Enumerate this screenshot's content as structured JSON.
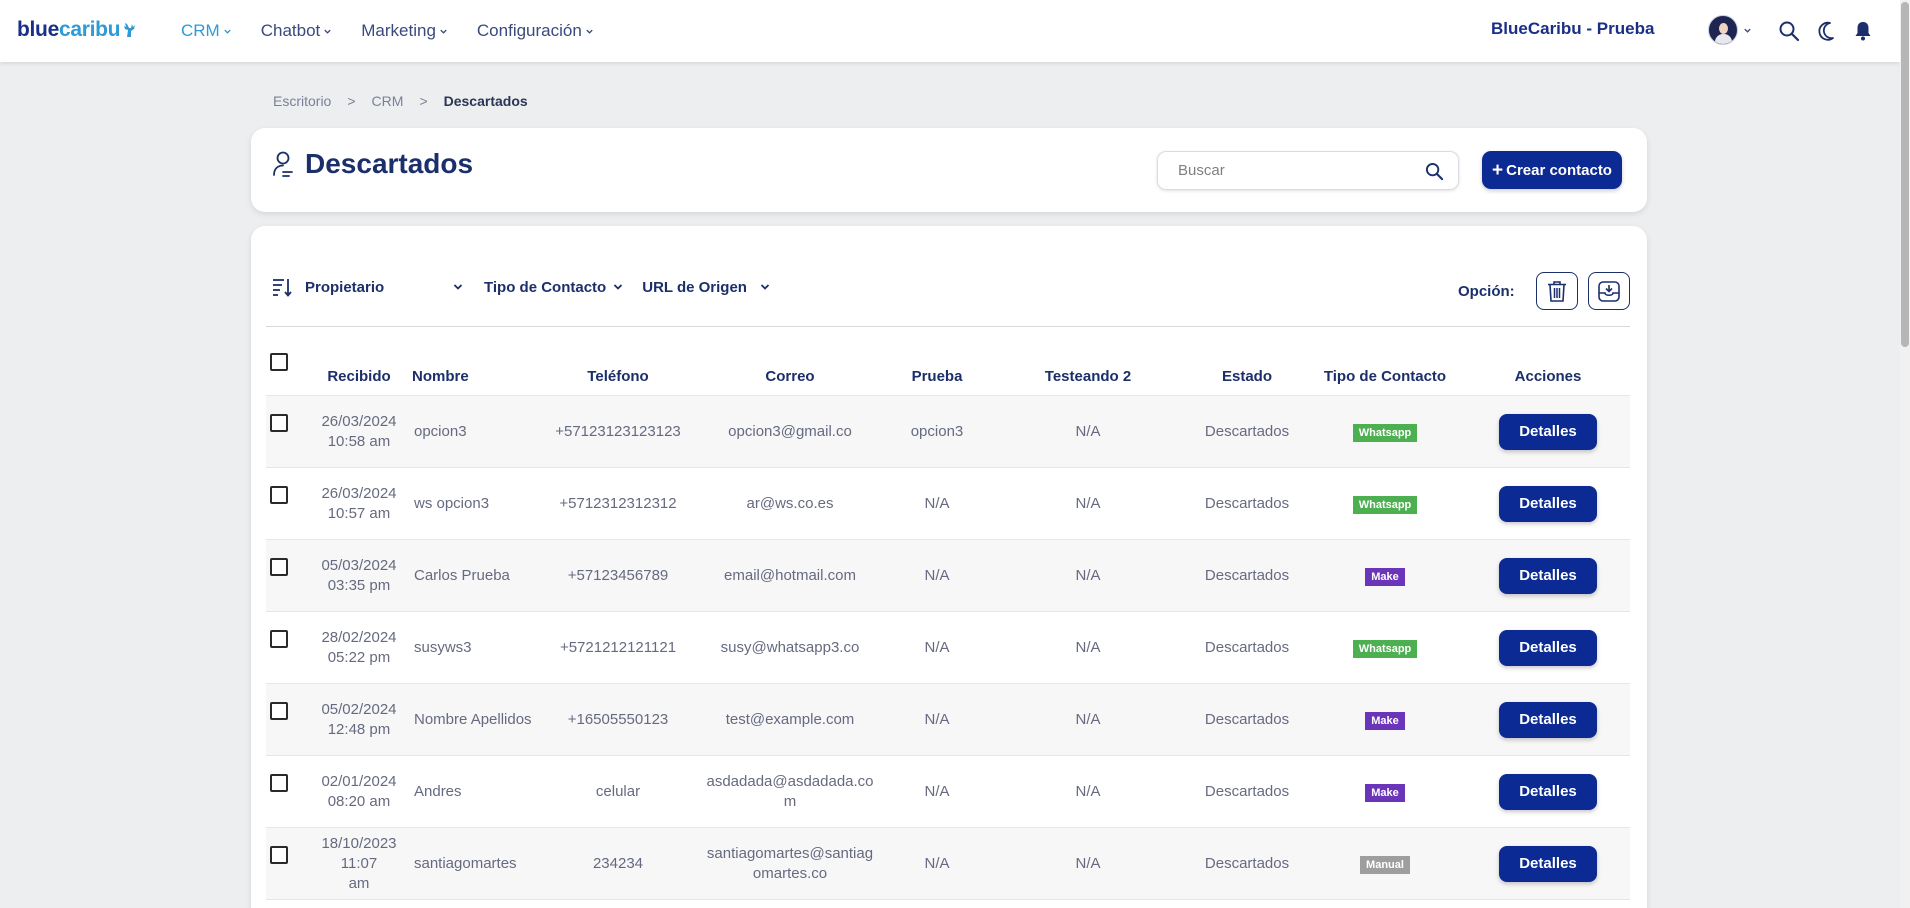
{
  "app": {
    "logo_part1": "blue",
    "logo_part2": "caribu",
    "company": "BlueCaribu - Prueba"
  },
  "nav": [
    {
      "label": "CRM",
      "active": true
    },
    {
      "label": "Chatbot",
      "active": false
    },
    {
      "label": "Marketing",
      "active": false
    },
    {
      "label": "Configuración",
      "active": false
    }
  ],
  "breadcrumb": {
    "items": [
      "Escritorio",
      "CRM",
      "Descartados"
    ],
    "separator": ">"
  },
  "header": {
    "title": "Descartados",
    "search_placeholder": "Buscar",
    "create_label": "Crear contacto",
    "create_icon": "+"
  },
  "filters": {
    "owner": "Propietario",
    "contact_type": "Tipo de Contacto",
    "origin_url": "URL de Origen",
    "options_label": "Opción:"
  },
  "table": {
    "columns": [
      "Recibido",
      "Nombre",
      "Teléfono",
      "Correo",
      "Prueba",
      "Testeando 2",
      "Estado",
      "Tipo de Contacto",
      "Acciones"
    ],
    "rows": [
      {
        "received_date": "26/03/2024",
        "received_time": "10:58 am",
        "name": "opcion3",
        "phone": "+57123123123123",
        "email": "opcion3@gmail.co",
        "email_line2": "",
        "prueba": "opcion3",
        "testeando": "N/A",
        "estado": "Descartados",
        "type": "Whatsapp",
        "type_color": "#4caf50",
        "action": "Detalles"
      },
      {
        "received_date": "26/03/2024",
        "received_time": "10:57 am",
        "name": "ws opcion3",
        "phone": "+5712312312312",
        "email": "ar@ws.co.es",
        "email_line2": "",
        "prueba": "N/A",
        "testeando": "N/A",
        "estado": "Descartados",
        "type": "Whatsapp",
        "type_color": "#4caf50",
        "action": "Detalles"
      },
      {
        "received_date": "05/03/2024",
        "received_time": "03:35 pm",
        "name": "Carlos Prueba",
        "phone": "+57123456789",
        "email": "email@hotmail.com",
        "email_line2": "",
        "prueba": "N/A",
        "testeando": "N/A",
        "estado": "Descartados",
        "type": "Make",
        "type_color": "#6a35b8",
        "action": "Detalles"
      },
      {
        "received_date": "28/02/2024",
        "received_time": "05:22 pm",
        "name": "susyws3",
        "phone": "+5721212121121",
        "email": "susy@whatsapp3.co",
        "email_line2": "",
        "prueba": "N/A",
        "testeando": "N/A",
        "estado": "Descartados",
        "type": "Whatsapp",
        "type_color": "#4caf50",
        "action": "Detalles"
      },
      {
        "received_date": "05/02/2024",
        "received_time": "12:48 pm",
        "name": "Nombre Apellidos",
        "phone": "+16505550123",
        "email": "test@example.com",
        "email_line2": "",
        "prueba": "N/A",
        "testeando": "N/A",
        "estado": "Descartados",
        "type": "Make",
        "type_color": "#6a35b8",
        "action": "Detalles"
      },
      {
        "received_date": "02/01/2024",
        "received_time": "08:20 am",
        "name": "Andres",
        "phone": "celular",
        "email": "asdadada@asdadada.co",
        "email_line2": "m",
        "prueba": "N/A",
        "testeando": "N/A",
        "estado": "Descartados",
        "type": "Make",
        "type_color": "#6a35b8",
        "action": "Detalles"
      },
      {
        "received_date": "18/10/2023 11:07",
        "received_time": "am",
        "name": "santiagomartes",
        "phone": "234234",
        "email": "santiagomartes@santiag",
        "email_line2": "omartes.co",
        "prueba": "N/A",
        "testeando": "N/A",
        "estado": "Descartados",
        "type": "Manual",
        "type_color": "#9e9e9e",
        "action": "Detalles"
      }
    ]
  },
  "colors": {
    "primary": "#0b2a93",
    "brand_dark": "#1b2f86",
    "brand_light": "#2e9bd6"
  }
}
